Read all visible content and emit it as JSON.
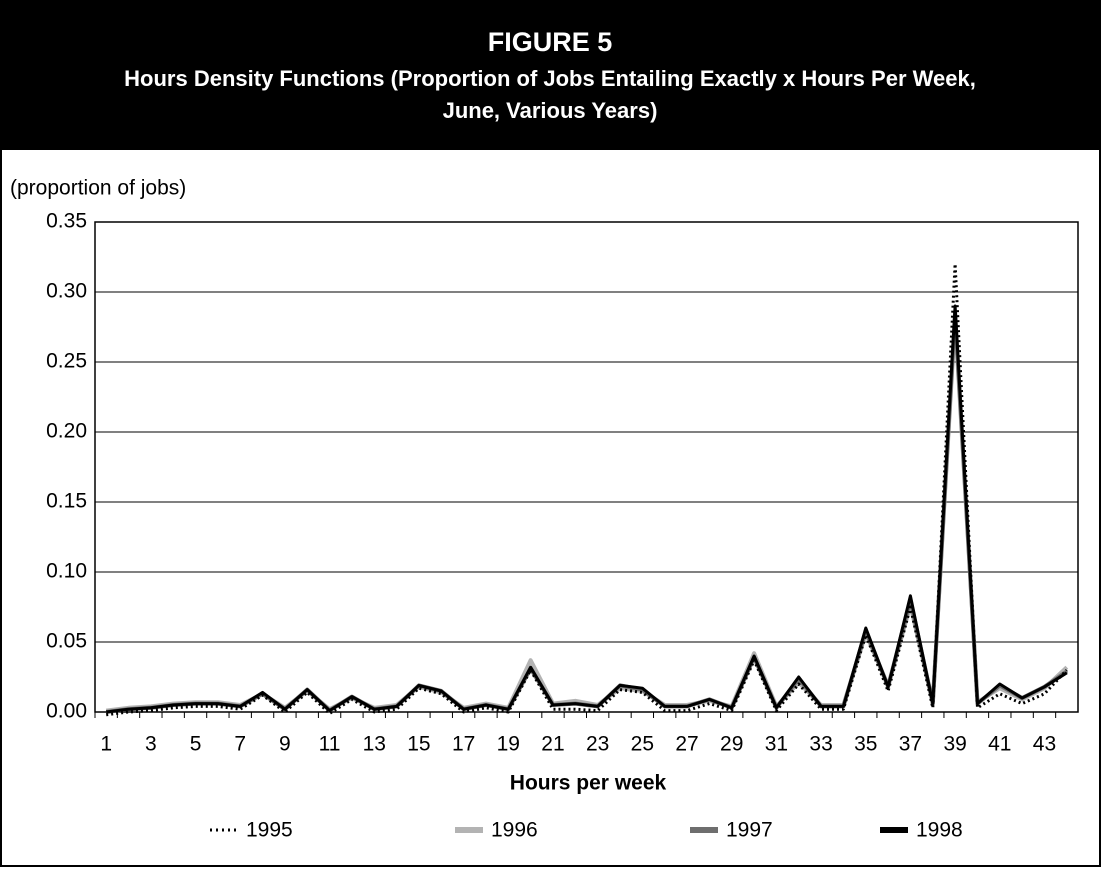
{
  "chart_data": {
    "type": "line",
    "title": "FIGURE 5",
    "subtitle": [
      "Hours Density Functions (Proportion of Jobs Entailing Exactly x Hours Per Week,",
      "June, Various Years)"
    ],
    "y_label": "(proportion of jobs)",
    "x_label": "Hours per week",
    "categories": [
      1,
      null,
      3,
      null,
      5,
      null,
      7,
      null,
      9,
      null,
      11,
      null,
      13,
      null,
      15,
      null,
      17,
      null,
      19,
      null,
      21,
      null,
      23,
      null,
      25,
      null,
      27,
      null,
      29,
      null,
      31,
      null,
      33,
      null,
      35,
      null,
      37,
      null,
      39,
      null,
      41,
      null,
      43,
      null
    ],
    "ylim": [
      0,
      0.35
    ],
    "yticks": [
      {
        "value": 0,
        "label": "0.00"
      },
      0.05,
      {
        "value": 0.1,
        "label": "0.10"
      },
      0.15,
      {
        "value": 0.2,
        "label": "0.20"
      },
      0.25,
      {
        "value": 0.3,
        "label": "0.30"
      },
      0.35
    ],
    "grid": true,
    "series": [
      {
        "name": "1996",
        "color": "#b3b3b3",
        "width": 4,
        "values": [
          0.001,
          0.003,
          0.004,
          0.006,
          0.007,
          0.007,
          0.005,
          0.013,
          0.003,
          0.015,
          0.002,
          0.01,
          0.003,
          0.005,
          0.018,
          0.014,
          0.003,
          0.006,
          0.003,
          0.037,
          0.006,
          0.008,
          0.005,
          0.017,
          0.015,
          0.005,
          0.005,
          0.008,
          0.004,
          0.042,
          0.004,
          0.021,
          0.005,
          0.005,
          0.056,
          0.019,
          0.076,
          0.007,
          0.28,
          0.007,
          0.017,
          0.009,
          0.017,
          0.032
        ]
      },
      {
        "name": "1997",
        "color": "#6e6e6e",
        "width": 4,
        "values": [
          0.0,
          0.002,
          0.003,
          0.005,
          0.006,
          0.006,
          0.004,
          0.013,
          0.002,
          0.016,
          0.001,
          0.011,
          0.002,
          0.004,
          0.019,
          0.015,
          0.002,
          0.005,
          0.002,
          0.031,
          0.005,
          0.006,
          0.004,
          0.019,
          0.016,
          0.004,
          0.004,
          0.009,
          0.003,
          0.039,
          0.003,
          0.024,
          0.004,
          0.004,
          0.058,
          0.018,
          0.08,
          0.006,
          0.285,
          0.006,
          0.019,
          0.01,
          0.018,
          0.029
        ]
      },
      {
        "name": "1998",
        "color": "#000000",
        "width": 3,
        "values": [
          0.0,
          0.002,
          0.003,
          0.005,
          0.006,
          0.006,
          0.004,
          0.014,
          0.002,
          0.016,
          0.001,
          0.011,
          0.002,
          0.004,
          0.019,
          0.015,
          0.002,
          0.005,
          0.002,
          0.032,
          0.005,
          0.006,
          0.004,
          0.019,
          0.017,
          0.004,
          0.004,
          0.009,
          0.003,
          0.04,
          0.003,
          0.025,
          0.004,
          0.004,
          0.06,
          0.018,
          0.083,
          0.006,
          0.29,
          0.006,
          0.02,
          0.01,
          0.018,
          0.028
        ]
      },
      {
        "name": "1995",
        "color": "#000000",
        "width": 3,
        "dash": "dotted",
        "values": [
          -0.002,
          0.0,
          0.001,
          0.003,
          0.004,
          0.004,
          0.002,
          0.012,
          0.0,
          0.014,
          -0.001,
          0.009,
          0.0,
          0.002,
          0.017,
          0.013,
          0.0,
          0.003,
          0.0,
          0.03,
          0.002,
          0.002,
          0.001,
          0.016,
          0.014,
          0.001,
          0.001,
          0.006,
          0.001,
          0.037,
          0.001,
          0.02,
          0.002,
          0.002,
          0.055,
          0.015,
          0.075,
          0.003,
          0.32,
          0.003,
          0.013,
          0.006,
          0.013,
          0.03
        ]
      }
    ]
  }
}
